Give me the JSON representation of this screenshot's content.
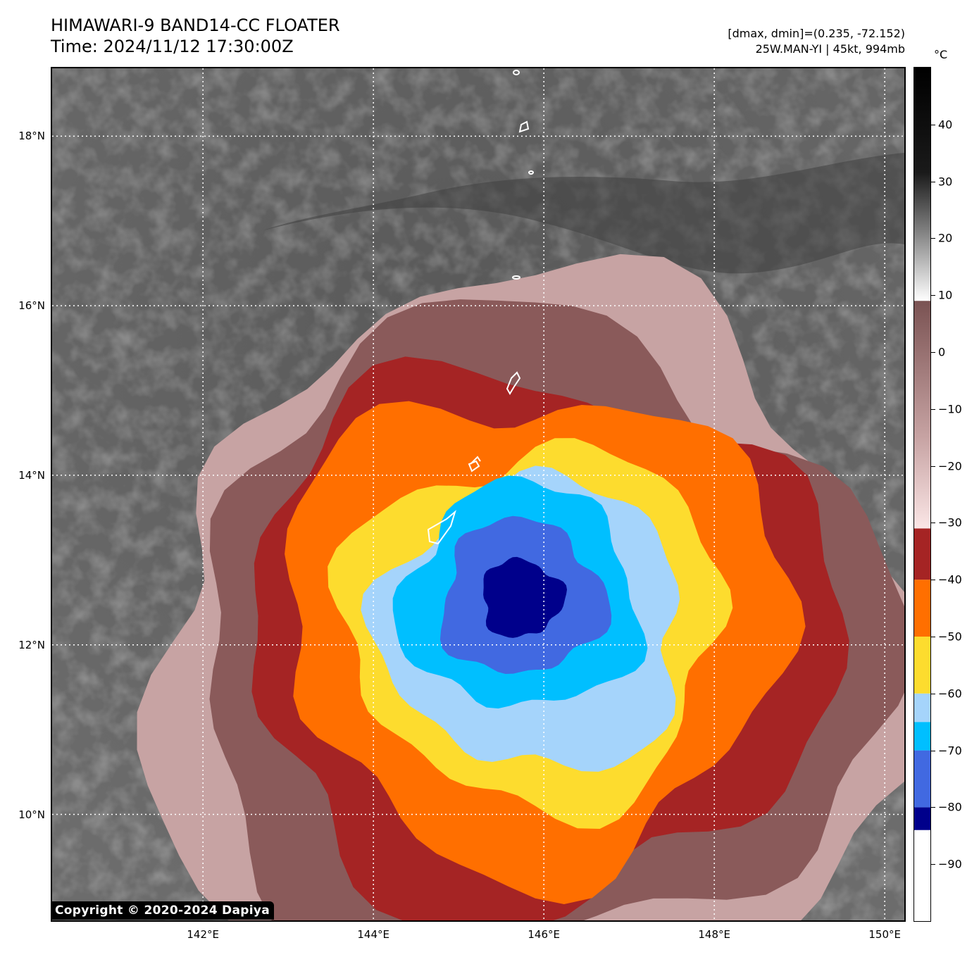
{
  "header": {
    "title_line1": "HIMAWARI-9 BAND14-CC FLOATER",
    "title_line2": "Time: 2024/11/12 17:30:00Z",
    "info_line1": "[dmax, dmin]=(0.235, -72.152)",
    "info_line2": "25W.MAN-YI | 45kt, 994mb"
  },
  "map": {
    "lat_labels": [
      "18°N",
      "16°N",
      "14°N",
      "12°N",
      "10°N"
    ],
    "lon_labels": [
      "142°E",
      "144°E",
      "146°E",
      "148°E",
      "150°E"
    ],
    "lat_values": [
      18,
      16,
      14,
      12,
      10
    ],
    "lon_values": [
      142,
      144,
      146,
      148,
      150
    ],
    "lat_range": [
      8.75,
      18.8
    ],
    "lon_range": [
      140.23,
      150.23
    ],
    "storm_center": {
      "lat": 12.3,
      "lon": 145.9
    },
    "gridlines": "dotted-white"
  },
  "copyright": "Copyright © 2020-2024 Dapiya",
  "colorbar": {
    "unit": "°C",
    "labels": [
      "40",
      "30",
      "20",
      "10",
      "0",
      "−10",
      "−20",
      "−30",
      "−40",
      "−50",
      "−60",
      "−70",
      "−80",
      "−90"
    ],
    "values": [
      40,
      30,
      20,
      10,
      0,
      -10,
      -20,
      -30,
      -40,
      -50,
      -60,
      -70,
      -80,
      -90
    ],
    "range": [
      -100,
      50
    ],
    "bands": [
      {
        "from": -100,
        "to": -84,
        "color": "#ffffff"
      },
      {
        "from": -84,
        "to": -80,
        "color": "#00008b"
      },
      {
        "from": -80,
        "to": -70,
        "color": "#4169e1"
      },
      {
        "from": -70,
        "to": -65,
        "color": "#00bfff"
      },
      {
        "from": -65,
        "to": -60,
        "color": "#a5d4fb"
      },
      {
        "from": -60,
        "to": -50,
        "color": "#fddc2e"
      },
      {
        "from": -50,
        "to": -40,
        "color": "#ff6f00"
      },
      {
        "from": -40,
        "to": -31,
        "color": "#a52424"
      }
    ]
  },
  "colors": {
    "cloud_gray": "#6a6a6a",
    "dark_gray": "#474747",
    "pink_brown": "#8a5a5a",
    "light_pink": "#e8c9c9"
  }
}
